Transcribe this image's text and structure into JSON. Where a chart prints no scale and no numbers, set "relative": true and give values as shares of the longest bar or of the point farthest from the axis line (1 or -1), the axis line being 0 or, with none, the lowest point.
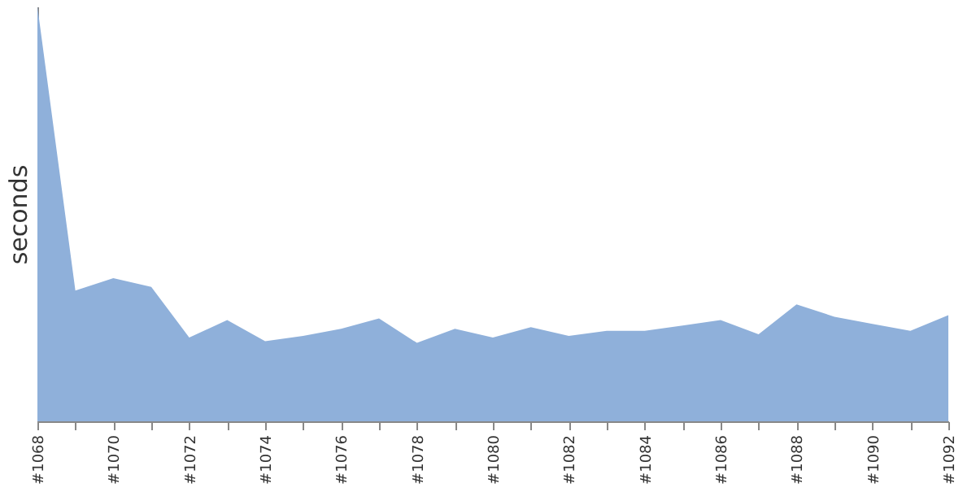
{
  "chart_data": {
    "type": "area",
    "ylabel": "seconds",
    "relative": true,
    "grid": false,
    "categories": [
      "#1068",
      null,
      "#1070",
      null,
      "#1072",
      null,
      "#1074",
      null,
      "#1076",
      null,
      "#1078",
      null,
      "#1080",
      null,
      "#1082",
      null,
      "#1084",
      null,
      "#1086",
      null,
      "#1088",
      null,
      "#1090",
      null,
      "#1092"
    ],
    "series": [
      {
        "color": "#8fb0da",
        "values": [
          1.0,
          0.315,
          0.345,
          0.324,
          0.202,
          0.244,
          0.193,
          0.206,
          0.223,
          0.248,
          0.189,
          0.223,
          0.202,
          0.227,
          0.206,
          0.218,
          0.218,
          0.231,
          0.244,
          0.21,
          0.282,
          0.252,
          0.235,
          0.218,
          0.256
        ]
      }
    ]
  }
}
